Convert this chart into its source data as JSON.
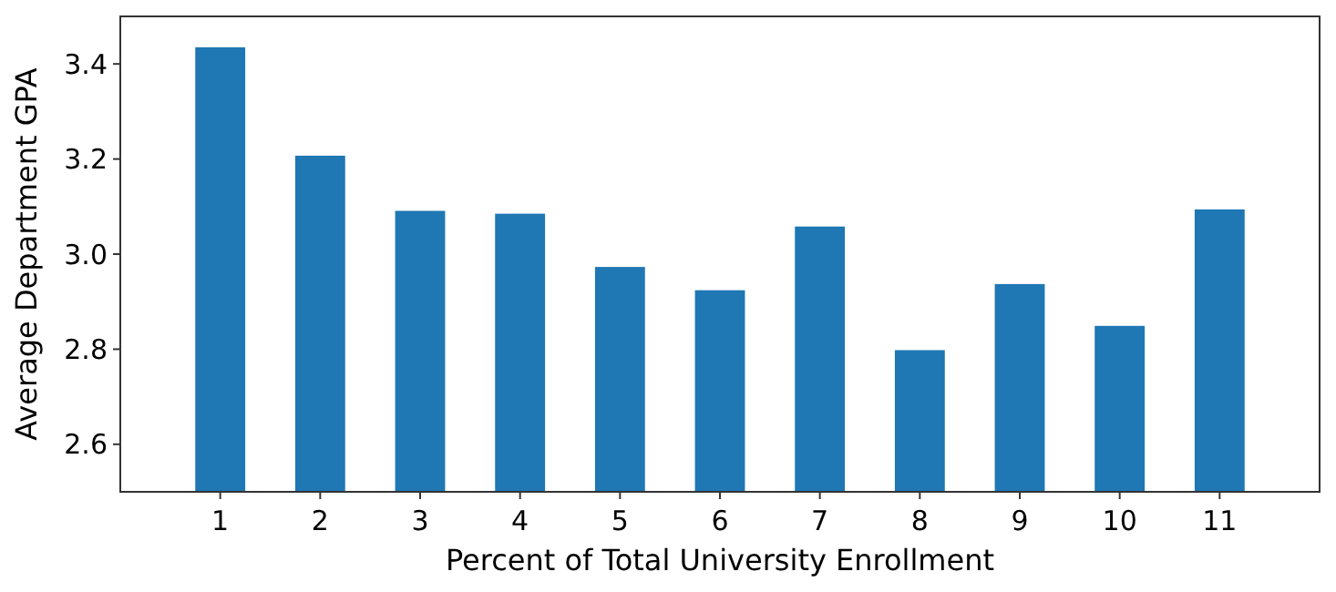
{
  "chart_data": {
    "type": "bar",
    "xlabel": "Percent of Total University Enrollment",
    "ylabel": "Average Department GPA",
    "categories": [
      "1",
      "2",
      "3",
      "4",
      "5",
      "6",
      "7",
      "8",
      "9",
      "10",
      "11"
    ],
    "values": [
      3.435,
      3.207,
      3.091,
      3.085,
      2.973,
      2.924,
      3.058,
      2.798,
      2.937,
      2.849,
      3.094
    ],
    "color": "#1f77b4",
    "ylim": [
      2.5,
      3.5
    ],
    "yticks": [
      2.6,
      2.8,
      {
        "value": 3,
        "label": "3.0"
      },
      3.2,
      3.4
    ],
    "grid": false
  }
}
